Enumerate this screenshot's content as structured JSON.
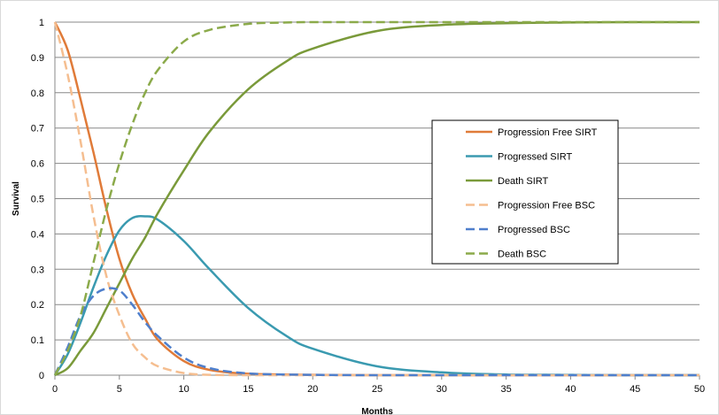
{
  "chart_data": {
    "type": "line",
    "title": "",
    "xlabel": "Months",
    "ylabel": "Survival",
    "xlim": [
      0,
      50
    ],
    "ylim": [
      0,
      1
    ],
    "xticks": [
      "0",
      "5",
      "10",
      "15",
      "20",
      "25",
      "30",
      "35",
      "40",
      "45",
      "50"
    ],
    "yticks": [
      "0",
      "0.1",
      "0.2",
      "0.3",
      "0.4",
      "0.5",
      "0.6",
      "0.7",
      "0.8",
      "0.9",
      "1"
    ],
    "grid": "horizontal",
    "legend_position": "right",
    "series": [
      {
        "name": "Progression Free SIRT",
        "color": "#E07B39",
        "dash": "solid",
        "x": [
          0,
          1,
          2,
          3,
          4,
          5,
          6,
          7,
          8,
          10,
          12,
          15,
          20,
          25,
          30,
          35,
          40,
          45,
          50
        ],
        "y": [
          1.0,
          0.92,
          0.78,
          0.63,
          0.47,
          0.33,
          0.23,
          0.16,
          0.1,
          0.04,
          0.015,
          0.004,
          0.001,
          0,
          0,
          0,
          0,
          0,
          0
        ]
      },
      {
        "name": "Progressed SIRT",
        "color": "#3A9AB0",
        "dash": "solid",
        "x": [
          0,
          1,
          2,
          3,
          4,
          5,
          6,
          7,
          8,
          10,
          12,
          15,
          18,
          20,
          25,
          30,
          35,
          40,
          45,
          50
        ],
        "y": [
          0,
          0.06,
          0.15,
          0.25,
          0.34,
          0.41,
          0.445,
          0.45,
          0.44,
          0.38,
          0.3,
          0.19,
          0.11,
          0.075,
          0.025,
          0.008,
          0.002,
          0.001,
          0,
          0
        ]
      },
      {
        "name": "Death SIRT",
        "color": "#7A9A3A",
        "dash": "solid",
        "x": [
          0,
          1,
          2,
          3,
          4,
          5,
          6,
          7,
          8,
          10,
          12,
          15,
          18,
          20,
          25,
          30,
          35,
          40,
          45,
          50
        ],
        "y": [
          0,
          0.02,
          0.07,
          0.12,
          0.19,
          0.26,
          0.33,
          0.39,
          0.46,
          0.58,
          0.69,
          0.81,
          0.89,
          0.925,
          0.975,
          0.992,
          0.997,
          0.999,
          1.0,
          1.0
        ]
      },
      {
        "name": "Progression Free BSC",
        "color": "#F5BE90",
        "dash": "dashed",
        "x": [
          0,
          1,
          2,
          3,
          4,
          5,
          6,
          7,
          8,
          10,
          12,
          15,
          20,
          25,
          30,
          35,
          40,
          45,
          50
        ],
        "y": [
          1.0,
          0.85,
          0.66,
          0.45,
          0.28,
          0.17,
          0.09,
          0.05,
          0.025,
          0.006,
          0.001,
          0,
          0,
          0,
          0,
          0,
          0,
          0,
          0
        ]
      },
      {
        "name": "Progressed BSC",
        "color": "#4F7FCC",
        "dash": "dashed",
        "x": [
          0,
          1,
          2,
          3,
          4,
          5,
          6,
          7,
          8,
          10,
          12,
          15,
          20,
          25,
          30,
          35,
          40,
          45,
          50
        ],
        "y": [
          0,
          0.08,
          0.17,
          0.225,
          0.245,
          0.24,
          0.2,
          0.15,
          0.11,
          0.05,
          0.02,
          0.005,
          0.001,
          0,
          0,
          0,
          0,
          0,
          0
        ]
      },
      {
        "name": "Death BSC",
        "color": "#8BAA4A",
        "dash": "dashed",
        "x": [
          0,
          1,
          2,
          3,
          4,
          5,
          6,
          7,
          8,
          10,
          12,
          15,
          18,
          20,
          25,
          30,
          35,
          40,
          45,
          50
        ],
        "y": [
          0,
          0.07,
          0.17,
          0.32,
          0.47,
          0.6,
          0.71,
          0.8,
          0.865,
          0.945,
          0.978,
          0.995,
          0.999,
          1.0,
          1.0,
          1.0,
          1.0,
          1.0,
          1.0,
          1.0
        ]
      }
    ]
  }
}
